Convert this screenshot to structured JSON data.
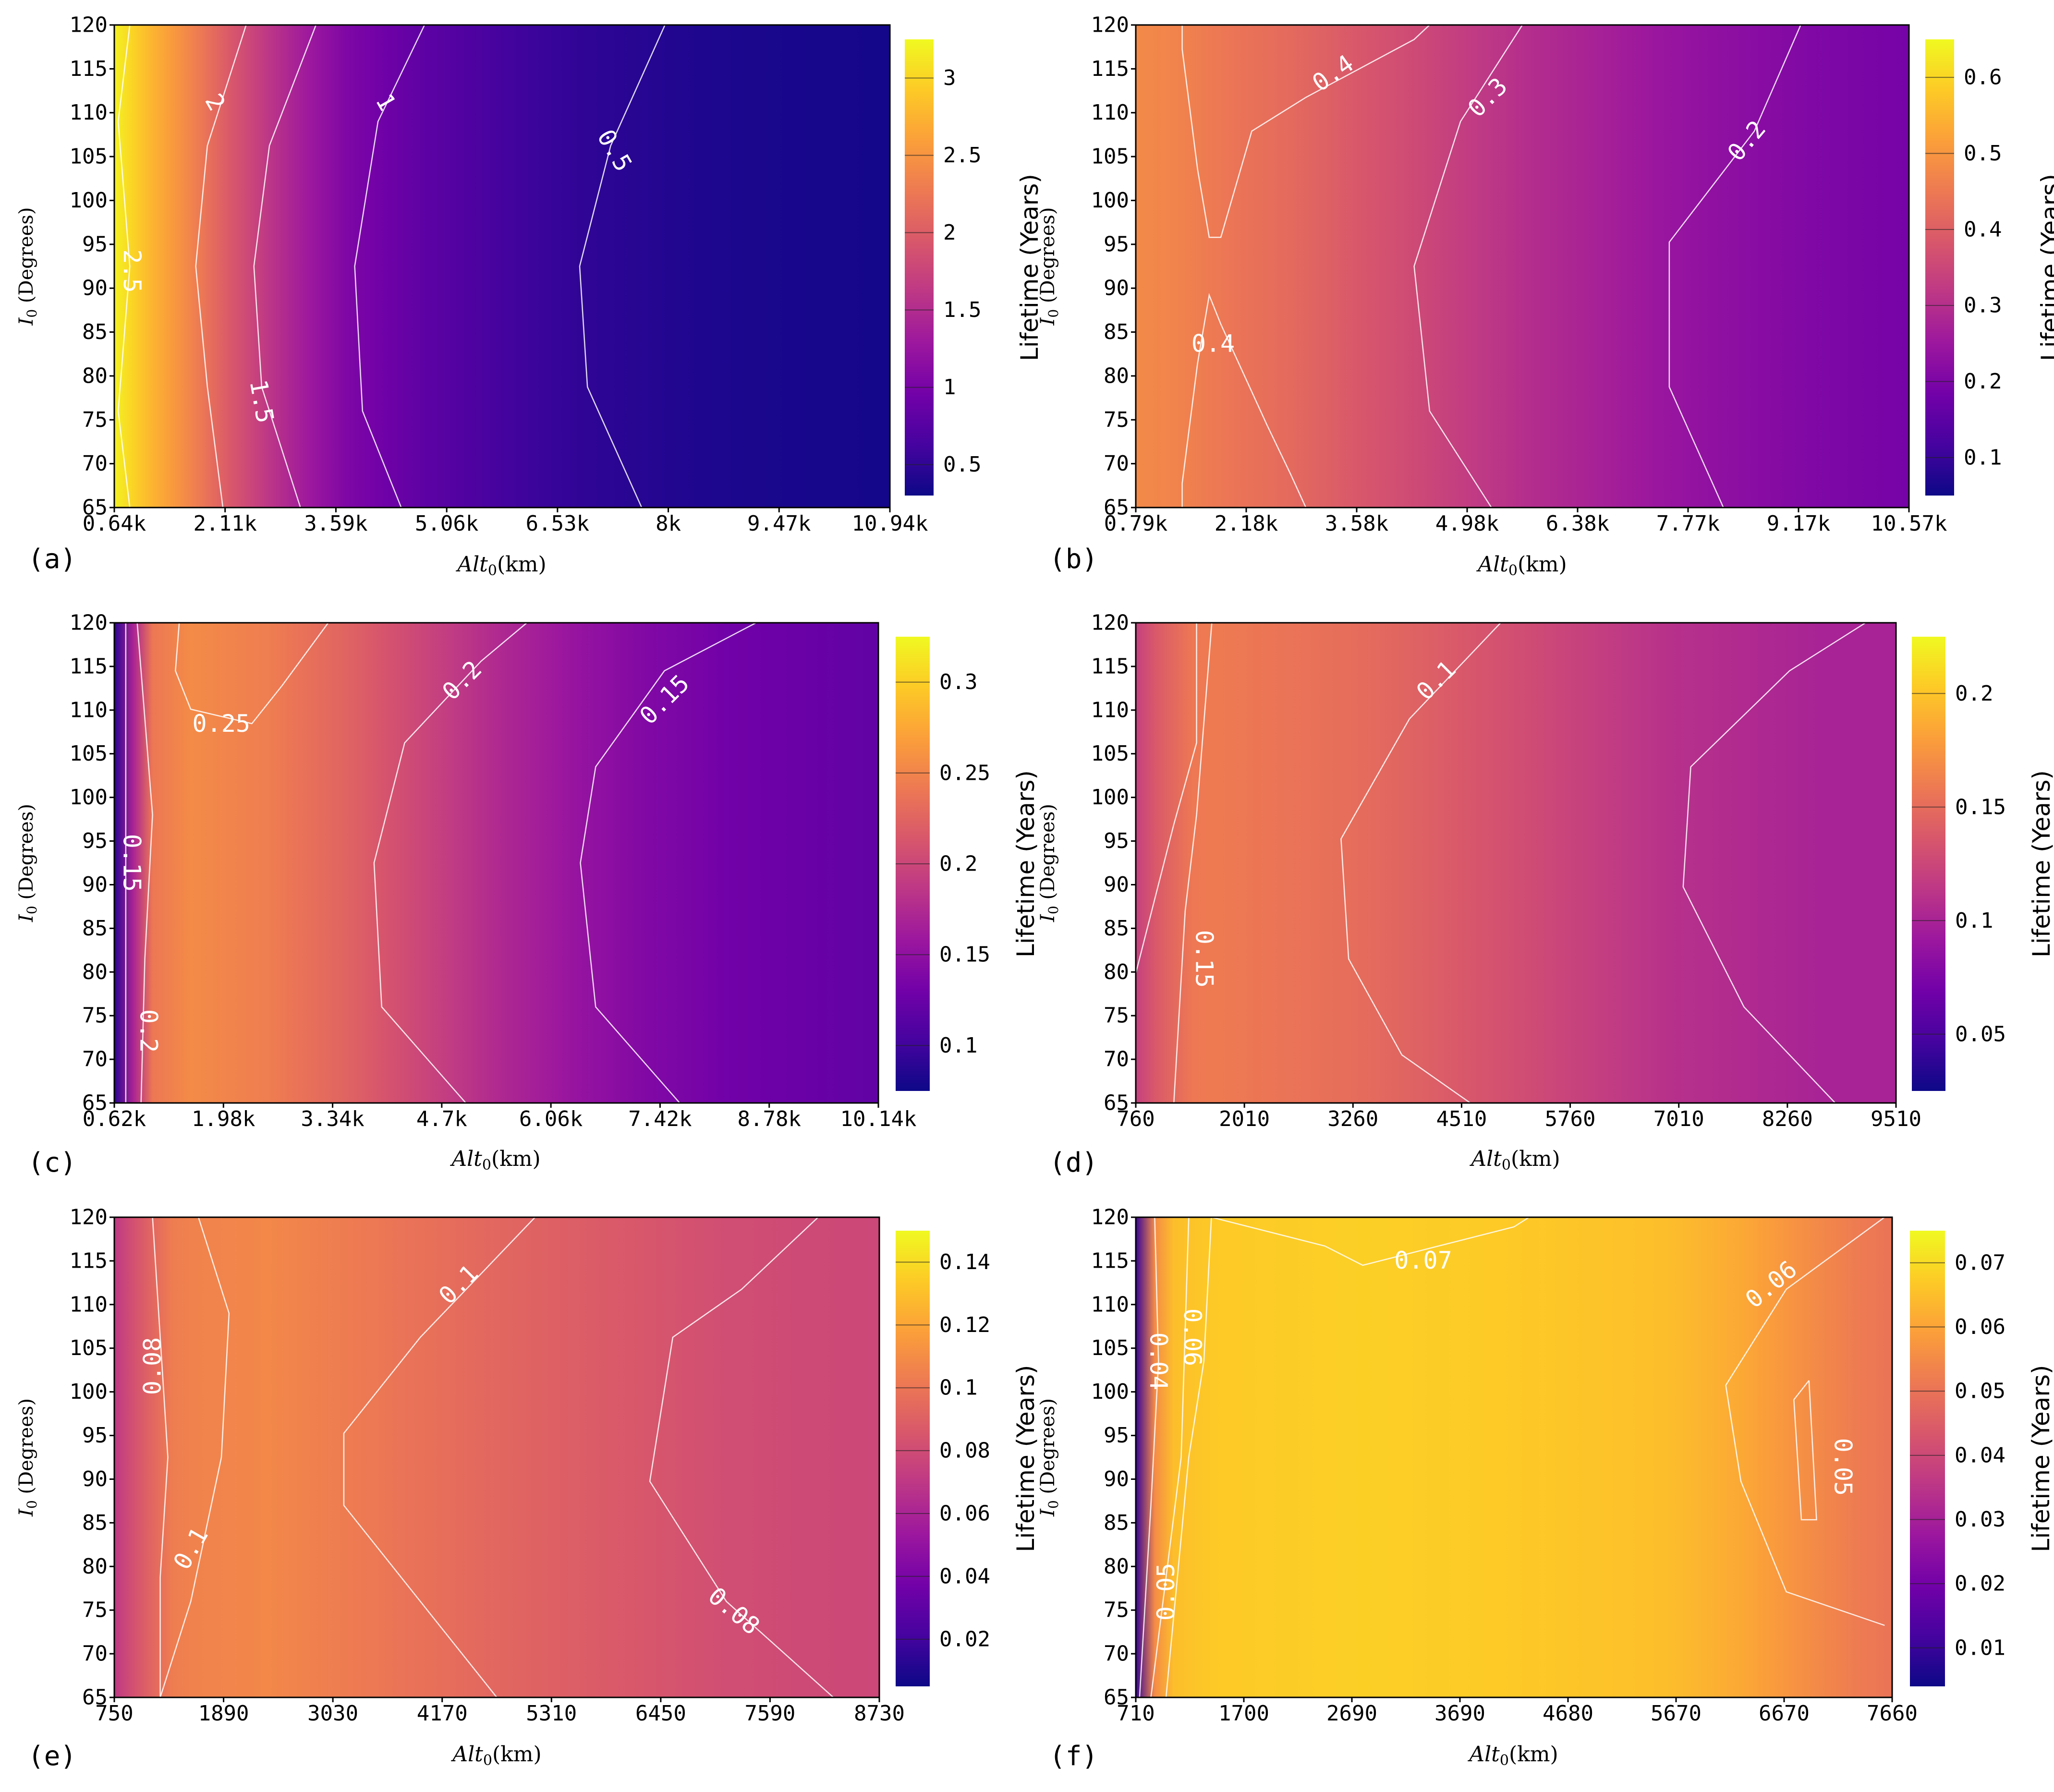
{
  "figure": {
    "colormap": [
      "#0d0887",
      "#46039f",
      "#7201a8",
      "#9c179e",
      "#bd3786",
      "#d8576b",
      "#ed7953",
      "#fb9f3a",
      "#fdca26",
      "#f0f921"
    ],
    "contour_color": "#ffffff",
    "background": "#ffffff"
  },
  "chart_data": [
    {
      "panel_label": "(a)",
      "type": "heatmap",
      "subtype": "filled-contour",
      "xlabel": "Alt",
      "xlabel_subscript": "0",
      "xlabel_unit": "(km)",
      "ylabel": "I",
      "ylabel_subscript": "0",
      "ylabel_unit": "(Degrees)",
      "x_ticks": [
        "0.64k",
        "2.11k",
        "3.59k",
        "5.06k",
        "6.53k",
        "8k",
        "9.47k",
        "10.94k"
      ],
      "y_ticks": [
        "65",
        "70",
        "75",
        "80",
        "85",
        "90",
        "95",
        "100",
        "105",
        "110",
        "115",
        "120"
      ],
      "ylim": [
        65,
        120
      ],
      "colorbar": {
        "label": "Lifetime (Years)",
        "range": [
          0.3,
          3.25
        ],
        "ticks": [
          "0.5",
          "1",
          "1.5",
          "2",
          "2.5",
          "3"
        ],
        "tick_values": [
          0.5,
          1,
          1.5,
          2,
          2.5,
          3
        ]
      },
      "contour_levels": [
        "2.5",
        "2",
        "1.5",
        "1",
        "0.5"
      ],
      "value_profile": [
        [
          0,
          3.2
        ],
        [
          0.05,
          2.75
        ],
        [
          0.1,
          2.35
        ],
        [
          0.15,
          1.95
        ],
        [
          0.2,
          1.6
        ],
        [
          0.25,
          1.3
        ],
        [
          0.3,
          1.05
        ],
        [
          0.4,
          0.8
        ],
        [
          0.5,
          0.62
        ],
        [
          0.6,
          0.5
        ],
        [
          0.7,
          0.43
        ],
        [
          0.8,
          0.38
        ],
        [
          0.9,
          0.36
        ],
        [
          1,
          0.34
        ]
      ]
    },
    {
      "panel_label": "(b)",
      "type": "heatmap",
      "subtype": "filled-contour",
      "xlabel": "Alt",
      "xlabel_subscript": "0",
      "xlabel_unit": "(km)",
      "ylabel": "I",
      "ylabel_subscript": "0",
      "ylabel_unit": "(Degrees)",
      "x_ticks": [
        "0.79k",
        "2.18k",
        "3.58k",
        "4.98k",
        "6.38k",
        "7.77k",
        "9.17k",
        "10.57k"
      ],
      "y_ticks": [
        "65",
        "70",
        "75",
        "80",
        "85",
        "90",
        "95",
        "100",
        "105",
        "110",
        "115",
        "120"
      ],
      "ylim": [
        65,
        120
      ],
      "colorbar": {
        "label": "Lifetime (Years)",
        "range": [
          0.05,
          0.65
        ],
        "ticks": [
          "0.1",
          "0.2",
          "0.3",
          "0.4",
          "0.5",
          "0.6"
        ],
        "tick_values": [
          0.1,
          0.2,
          0.3,
          0.4,
          0.5,
          0.6
        ]
      },
      "contour_levels": [
        "0.4",
        "0.4",
        "0.3",
        "0.2"
      ],
      "value_profile": [
        [
          0,
          0.48
        ],
        [
          0.05,
          0.47
        ],
        [
          0.1,
          0.45
        ],
        [
          0.2,
          0.42
        ],
        [
          0.3,
          0.38
        ],
        [
          0.4,
          0.34
        ],
        [
          0.5,
          0.3
        ],
        [
          0.6,
          0.27
        ],
        [
          0.7,
          0.24
        ],
        [
          0.8,
          0.22
        ],
        [
          0.9,
          0.2
        ],
        [
          1,
          0.19
        ]
      ]
    },
    {
      "panel_label": "(c)",
      "type": "heatmap",
      "subtype": "filled-contour",
      "xlabel": "Alt",
      "xlabel_subscript": "0",
      "xlabel_unit": "(km)",
      "ylabel": "I",
      "ylabel_subscript": "0",
      "ylabel_unit": "(Degrees)",
      "x_ticks": [
        "0.62k",
        "1.98k",
        "3.34k",
        "4.7k",
        "6.06k",
        "7.42k",
        "8.78k",
        "10.14k"
      ],
      "y_ticks": [
        "65",
        "70",
        "75",
        "80",
        "85",
        "90",
        "95",
        "100",
        "105",
        "110",
        "115",
        "120"
      ],
      "ylim": [
        65,
        120
      ],
      "colorbar": {
        "label": "Lifetime (Years)",
        "range": [
          0.075,
          0.325
        ],
        "ticks": [
          "0.1",
          "0.15",
          "0.2",
          "0.25",
          "0.3"
        ],
        "tick_values": [
          0.1,
          0.15,
          0.2,
          0.25,
          0.3
        ]
      },
      "contour_levels": [
        "0.25",
        "0.2",
        "0.15",
        "0.15",
        "0.2"
      ],
      "value_profile": [
        [
          0,
          0.09
        ],
        [
          0.01,
          0.1
        ],
        [
          0.025,
          0.17
        ],
        [
          0.05,
          0.24
        ],
        [
          0.1,
          0.255
        ],
        [
          0.2,
          0.245
        ],
        [
          0.3,
          0.225
        ],
        [
          0.4,
          0.2
        ],
        [
          0.5,
          0.175
        ],
        [
          0.6,
          0.155
        ],
        [
          0.7,
          0.14
        ],
        [
          0.8,
          0.13
        ],
        [
          0.9,
          0.125
        ],
        [
          1,
          0.12
        ]
      ]
    },
    {
      "panel_label": "(d)",
      "type": "heatmap",
      "subtype": "filled-contour",
      "xlabel": "Alt",
      "xlabel_subscript": "0",
      "xlabel_unit": "(km)",
      "ylabel": "I",
      "ylabel_subscript": "0",
      "ylabel_unit": "(Degrees)",
      "x_ticks": [
        "760",
        "2010",
        "3260",
        "4510",
        "5760",
        "7010",
        "8260",
        "9510"
      ],
      "y_ticks": [
        "65",
        "70",
        "75",
        "80",
        "85",
        "90",
        "95",
        "100",
        "105",
        "110",
        "115",
        "120"
      ],
      "ylim": [
        65,
        120
      ],
      "colorbar": {
        "label": "Lifetime (Years)",
        "range": [
          0.025,
          0.225
        ],
        "ticks": [
          "0.05",
          "0.1",
          "0.15",
          "0.2"
        ],
        "tick_values": [
          0.05,
          0.1,
          0.15,
          0.2
        ]
      },
      "contour_levels": [
        "0.15",
        "0.15",
        "0.1"
      ],
      "value_profile": [
        [
          0,
          0.12
        ],
        [
          0.03,
          0.14
        ],
        [
          0.08,
          0.16
        ],
        [
          0.2,
          0.155
        ],
        [
          0.3,
          0.15
        ],
        [
          0.4,
          0.14
        ],
        [
          0.5,
          0.13
        ],
        [
          0.6,
          0.12
        ],
        [
          0.7,
          0.11
        ],
        [
          0.8,
          0.105
        ],
        [
          0.9,
          0.1
        ],
        [
          1,
          0.1
        ]
      ]
    },
    {
      "panel_label": "(e)",
      "type": "heatmap",
      "subtype": "filled-contour",
      "xlabel": "Alt",
      "xlabel_subscript": "0",
      "xlabel_unit": "(km)",
      "ylabel": "I",
      "ylabel_subscript": "0",
      "ylabel_unit": "(Degrees)",
      "x_ticks": [
        "750",
        "1890",
        "3030",
        "4170",
        "5310",
        "6450",
        "7590",
        "8730"
      ],
      "y_ticks": [
        "65",
        "70",
        "75",
        "80",
        "85",
        "90",
        "95",
        "100",
        "105",
        "110",
        "115",
        "120"
      ],
      "ylim": [
        65,
        120
      ],
      "colorbar": {
        "label": "Lifetime (Years)",
        "range": [
          0.005,
          0.15
        ],
        "ticks": [
          "0.02",
          "0.04",
          "0.06",
          "0.08",
          "0.1",
          "0.12",
          "0.14"
        ],
        "tick_values": [
          0.02,
          0.04,
          0.06,
          0.08,
          0.1,
          0.12,
          0.14
        ]
      },
      "contour_levels": [
        "0.08",
        "0.1",
        "0.1",
        "0.08"
      ],
      "value_profile": [
        [
          0,
          0.07
        ],
        [
          0.03,
          0.085
        ],
        [
          0.08,
          0.105
        ],
        [
          0.2,
          0.108
        ],
        [
          0.3,
          0.103
        ],
        [
          0.4,
          0.098
        ],
        [
          0.5,
          0.093
        ],
        [
          0.6,
          0.089
        ],
        [
          0.7,
          0.085
        ],
        [
          0.8,
          0.081
        ],
        [
          0.9,
          0.079
        ],
        [
          1,
          0.078
        ]
      ]
    },
    {
      "panel_label": "(f)",
      "type": "heatmap",
      "subtype": "filled-contour",
      "xlabel": "Alt",
      "xlabel_subscript": "0",
      "xlabel_unit": "(km)",
      "ylabel": "I",
      "ylabel_subscript": "0",
      "ylabel_unit": "(Degrees)",
      "x_ticks": [
        "710",
        "1700",
        "2690",
        "3690",
        "4680",
        "5670",
        "6670",
        "7660"
      ],
      "y_ticks": [
        "65",
        "70",
        "75",
        "80",
        "85",
        "90",
        "95",
        "100",
        "105",
        "110",
        "115",
        "120"
      ],
      "ylim": [
        65,
        120
      ],
      "colorbar": {
        "label": "Lifetime (Years)",
        "range": [
          0.004,
          0.075
        ],
        "ticks": [
          "0.01",
          "0.02",
          "0.03",
          "0.04",
          "0.05",
          "0.06",
          "0.07"
        ],
        "tick_values": [
          0.01,
          0.02,
          0.03,
          0.04,
          0.05,
          0.06,
          0.07
        ]
      },
      "contour_levels": [
        "0.07",
        "0.06",
        "0.06",
        "0.04",
        "0.05",
        "0.05"
      ],
      "value_profile": [
        [
          0,
          0.01
        ],
        [
          0.01,
          0.03
        ],
        [
          0.025,
          0.055
        ],
        [
          0.05,
          0.065
        ],
        [
          0.1,
          0.067
        ],
        [
          0.3,
          0.068
        ],
        [
          0.5,
          0.067
        ],
        [
          0.7,
          0.065
        ],
        [
          0.8,
          0.061
        ],
        [
          0.88,
          0.056
        ],
        [
          0.95,
          0.052
        ],
        [
          1,
          0.05
        ]
      ]
    }
  ]
}
